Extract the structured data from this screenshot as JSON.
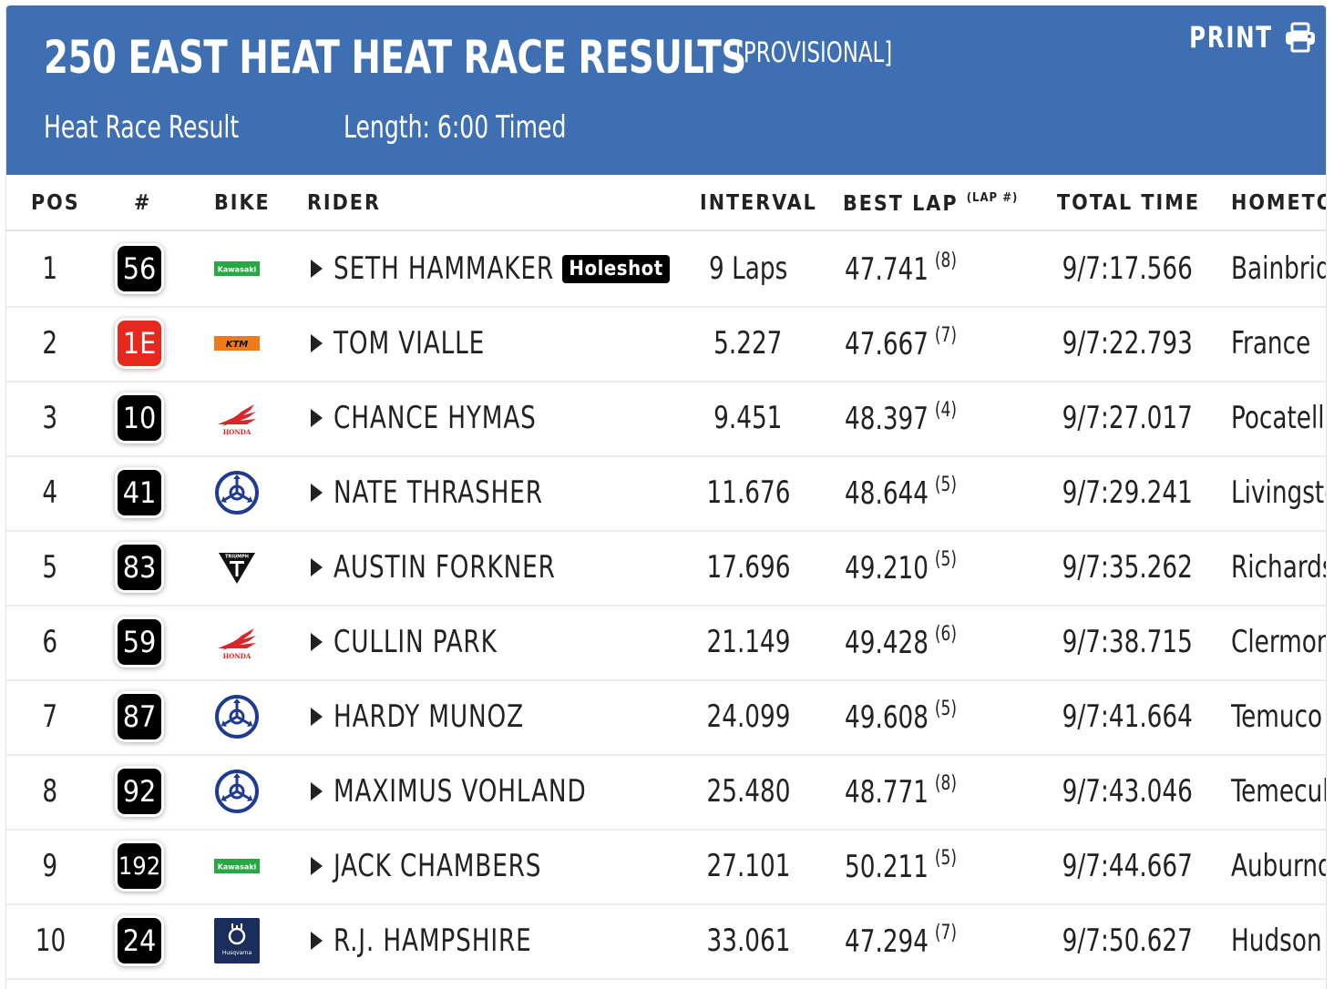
{
  "header": {
    "title": "250 EAST HEAT HEAT RACE RESULTS",
    "status": "[PROVISIONAL]",
    "print_label": "PRINT",
    "race_type": "Heat Race Result",
    "length": "Length: 6:00 Timed"
  },
  "columns": {
    "pos": "POS",
    "num": "#",
    "bike": "BIKE",
    "rider": "RIDER",
    "interval": "INTERVAL",
    "best_lap": "BEST LAP",
    "best_lap_sub": "(LAP #)",
    "total_time": "TOTAL TIME",
    "hometown": "HOMETOWN"
  },
  "rows": [
    {
      "pos": "1",
      "num": "56",
      "plate": "black",
      "bike": "kawasaki",
      "rider": "SETH HAMMAKER",
      "badge": "Holeshot",
      "interval": "9 Laps",
      "best": "47.741",
      "lap": "(8)",
      "total": "9/7:17.566",
      "hometown": "Bainbridge"
    },
    {
      "pos": "2",
      "num": "1E",
      "plate": "red",
      "bike": "ktm",
      "rider": "TOM VIALLE",
      "badge": "",
      "interval": "5.227",
      "best": "47.667",
      "lap": "(7)",
      "total": "9/7:22.793",
      "hometown": "France"
    },
    {
      "pos": "3",
      "num": "10",
      "plate": "black",
      "bike": "honda",
      "rider": "CHANCE HYMAS",
      "badge": "",
      "interval": "9.451",
      "best": "48.397",
      "lap": "(4)",
      "total": "9/7:27.017",
      "hometown": "Pocatello"
    },
    {
      "pos": "4",
      "num": "41",
      "plate": "black",
      "bike": "yamaha",
      "rider": "NATE THRASHER",
      "badge": "",
      "interval": "11.676",
      "best": "48.644",
      "lap": "(5)",
      "total": "9/7:29.241",
      "hometown": "Livingston"
    },
    {
      "pos": "5",
      "num": "83",
      "plate": "black",
      "bike": "triumph",
      "rider": "AUSTIN FORKNER",
      "badge": "",
      "interval": "17.696",
      "best": "49.210",
      "lap": "(5)",
      "total": "9/7:35.262",
      "hometown": "Richards"
    },
    {
      "pos": "6",
      "num": "59",
      "plate": "black",
      "bike": "honda",
      "rider": "CULLIN PARK",
      "badge": "",
      "interval": "21.149",
      "best": "49.428",
      "lap": "(6)",
      "total": "9/7:38.715",
      "hometown": "Clermont"
    },
    {
      "pos": "7",
      "num": "87",
      "plate": "black",
      "bike": "yamaha",
      "rider": "HARDY MUNOZ",
      "badge": "",
      "interval": "24.099",
      "best": "49.608",
      "lap": "(5)",
      "total": "9/7:41.664",
      "hometown": "Temuco"
    },
    {
      "pos": "8",
      "num": "92",
      "plate": "black",
      "bike": "yamaha",
      "rider": "MAXIMUS VOHLAND",
      "badge": "",
      "interval": "25.480",
      "best": "48.771",
      "lap": "(8)",
      "total": "9/7:43.046",
      "hometown": "Temecula"
    },
    {
      "pos": "9",
      "num": "192",
      "plate": "black",
      "bike": "kawasaki",
      "rider": "JACK CHAMBERS",
      "badge": "",
      "interval": "27.101",
      "best": "50.211",
      "lap": "(5)",
      "total": "9/7:44.667",
      "hometown": "Auburndale"
    },
    {
      "pos": "10",
      "num": "24",
      "plate": "black",
      "bike": "husqvarna",
      "rider": "R.J. HAMPSHIRE",
      "badge": "",
      "interval": "33.061",
      "best": "47.294",
      "lap": "(7)",
      "total": "9/7:50.627",
      "hometown": "Hudson"
    }
  ],
  "logos": {
    "kawasaki": "Kawasaki",
    "ktm": "KTM",
    "honda": "HONDA",
    "triumph": "TRIUMPH",
    "husqvarna": "Husqvarna"
  },
  "colors": {
    "header_bg": "#3f6fb3",
    "plate_red": "#e5291e",
    "kawasaki": "#27a844",
    "ktm": "#f07a1a",
    "honda": "#d9262b",
    "yamaha": "#1f3b8f",
    "husqvarna": "#1b2d5a"
  }
}
